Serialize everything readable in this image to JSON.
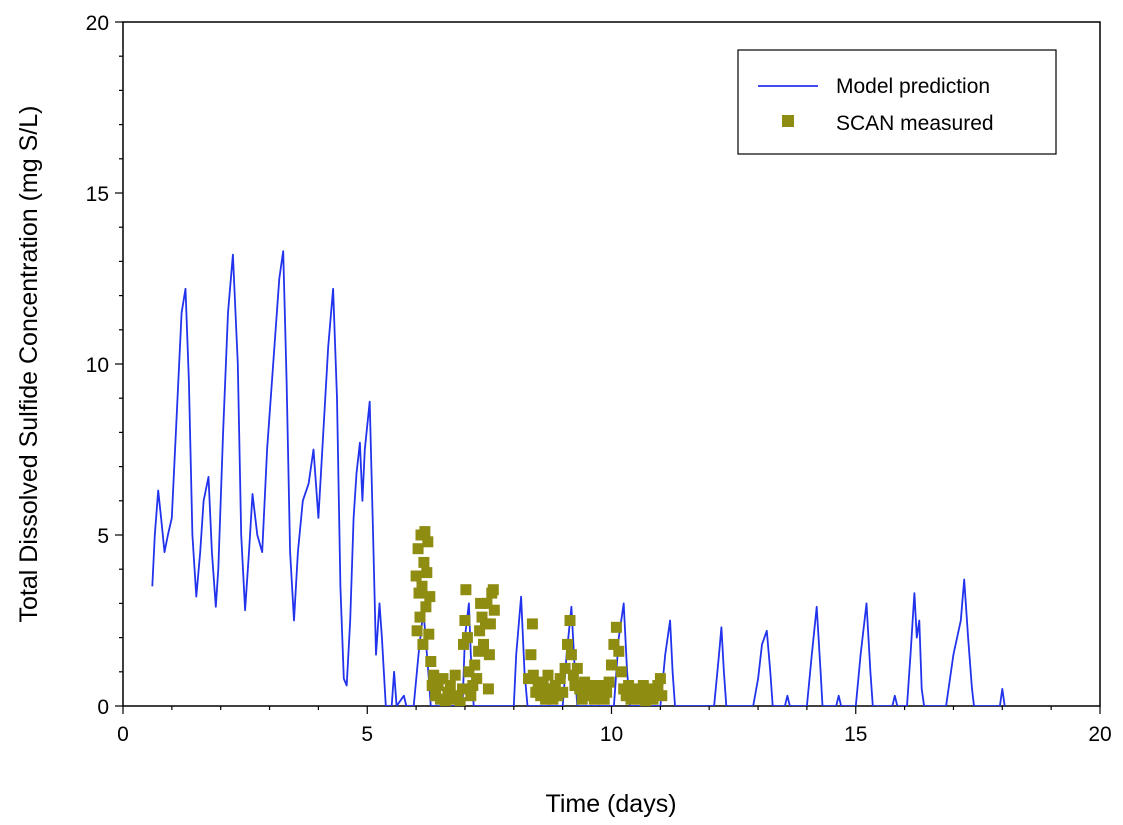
{
  "chart_data": {
    "type": "line",
    "title": "",
    "xlabel": "Time (days)",
    "ylabel": "Total Dissolved Sulfide Concentration (mg S/L)",
    "xlim": [
      0,
      20
    ],
    "ylim": [
      0,
      20
    ],
    "xticks": [
      0,
      5,
      10,
      15,
      20
    ],
    "yticks": [
      0,
      5,
      10,
      15,
      20
    ],
    "grid": false,
    "legend_position": "top-right",
    "colors": {
      "model": "#2233ee",
      "measured": "#8f8c12"
    },
    "series": [
      {
        "name": "Model prediction",
        "kind": "line",
        "points": [
          [
            0.6,
            3.5
          ],
          [
            0.65,
            5.0
          ],
          [
            0.72,
            6.3
          ],
          [
            0.78,
            5.5
          ],
          [
            0.85,
            4.5
          ],
          [
            0.92,
            5.0
          ],
          [
            1.0,
            5.5
          ],
          [
            1.1,
            8.5
          ],
          [
            1.2,
            11.5
          ],
          [
            1.28,
            12.2
          ],
          [
            1.35,
            9.5
          ],
          [
            1.42,
            5.0
          ],
          [
            1.5,
            3.2
          ],
          [
            1.58,
            4.5
          ],
          [
            1.65,
            6.0
          ],
          [
            1.75,
            6.7
          ],
          [
            1.82,
            4.5
          ],
          [
            1.9,
            2.9
          ],
          [
            1.95,
            4.0
          ],
          [
            2.05,
            8.0
          ],
          [
            2.15,
            11.5
          ],
          [
            2.25,
            13.2
          ],
          [
            2.35,
            10.0
          ],
          [
            2.42,
            5.0
          ],
          [
            2.5,
            2.8
          ],
          [
            2.58,
            4.5
          ],
          [
            2.65,
            6.2
          ],
          [
            2.75,
            5.0
          ],
          [
            2.85,
            4.5
          ],
          [
            2.95,
            7.5
          ],
          [
            3.1,
            10.5
          ],
          [
            3.2,
            12.5
          ],
          [
            3.28,
            13.3
          ],
          [
            3.35,
            9.5
          ],
          [
            3.42,
            4.5
          ],
          [
            3.5,
            2.5
          ],
          [
            3.58,
            4.5
          ],
          [
            3.68,
            6.0
          ],
          [
            3.8,
            6.5
          ],
          [
            3.9,
            7.5
          ],
          [
            4.0,
            5.5
          ],
          [
            4.1,
            8.0
          ],
          [
            4.2,
            10.5
          ],
          [
            4.3,
            12.2
          ],
          [
            4.38,
            9.0
          ],
          [
            4.45,
            3.5
          ],
          [
            4.52,
            0.8
          ],
          [
            4.58,
            0.6
          ],
          [
            4.65,
            2.5
          ],
          [
            4.72,
            5.5
          ],
          [
            4.78,
            6.8
          ],
          [
            4.85,
            7.7
          ],
          [
            4.9,
            6.0
          ],
          [
            4.95,
            7.5
          ],
          [
            5.05,
            8.9
          ],
          [
            5.12,
            5.0
          ],
          [
            5.18,
            1.5
          ],
          [
            5.25,
            3.0
          ],
          [
            5.3,
            2.0
          ],
          [
            5.38,
            0.0
          ],
          [
            5.5,
            0.0
          ],
          [
            5.55,
            1.0
          ],
          [
            5.6,
            0.0
          ],
          [
            5.75,
            0.3
          ],
          [
            5.8,
            0.0
          ],
          [
            5.95,
            0.0
          ],
          [
            6.05,
            1.5
          ],
          [
            6.15,
            2.8
          ],
          [
            6.25,
            1.0
          ],
          [
            6.3,
            0.0
          ],
          [
            6.95,
            0.0
          ],
          [
            7.0,
            2.0
          ],
          [
            7.08,
            3.0
          ],
          [
            7.12,
            1.5
          ],
          [
            7.18,
            0.0
          ],
          [
            8.0,
            0.0
          ],
          [
            8.05,
            1.5
          ],
          [
            8.15,
            3.2
          ],
          [
            8.22,
            1.0
          ],
          [
            8.28,
            0.0
          ],
          [
            9.0,
            0.0
          ],
          [
            9.08,
            1.5
          ],
          [
            9.18,
            2.9
          ],
          [
            9.25,
            1.0
          ],
          [
            9.3,
            0.0
          ],
          [
            10.05,
            0.0
          ],
          [
            10.15,
            2.0
          ],
          [
            10.25,
            3.0
          ],
          [
            10.32,
            1.0
          ],
          [
            10.38,
            0.0
          ],
          [
            11.0,
            0.0
          ],
          [
            11.1,
            1.5
          ],
          [
            11.2,
            2.5
          ],
          [
            11.25,
            1.0
          ],
          [
            11.3,
            0.0
          ],
          [
            12.1,
            0.0
          ],
          [
            12.2,
            1.5
          ],
          [
            12.25,
            2.3
          ],
          [
            12.3,
            1.0
          ],
          [
            12.35,
            0.0
          ],
          [
            12.9,
            0.0
          ],
          [
            13.0,
            0.8
          ],
          [
            13.08,
            1.8
          ],
          [
            13.18,
            2.2
          ],
          [
            13.25,
            1.0
          ],
          [
            13.3,
            0.0
          ],
          [
            13.55,
            0.0
          ],
          [
            13.6,
            0.3
          ],
          [
            13.65,
            0.0
          ],
          [
            14.0,
            0.0
          ],
          [
            14.1,
            1.5
          ],
          [
            14.2,
            2.9
          ],
          [
            14.28,
            1.0
          ],
          [
            14.32,
            0.0
          ],
          [
            14.6,
            0.0
          ],
          [
            14.65,
            0.3
          ],
          [
            14.7,
            0.0
          ],
          [
            15.0,
            0.0
          ],
          [
            15.1,
            1.5
          ],
          [
            15.22,
            3.0
          ],
          [
            15.3,
            1.0
          ],
          [
            15.35,
            0.0
          ],
          [
            15.75,
            0.0
          ],
          [
            15.8,
            0.3
          ],
          [
            15.85,
            0.0
          ],
          [
            16.05,
            0.0
          ],
          [
            16.12,
            1.5
          ],
          [
            16.2,
            3.3
          ],
          [
            16.25,
            2.0
          ],
          [
            16.3,
            2.5
          ],
          [
            16.35,
            0.5
          ],
          [
            16.4,
            0.0
          ],
          [
            16.85,
            0.0
          ],
          [
            17.0,
            1.5
          ],
          [
            17.15,
            2.5
          ],
          [
            17.22,
            3.7
          ],
          [
            17.3,
            2.0
          ],
          [
            17.38,
            0.5
          ],
          [
            17.42,
            0.0
          ],
          [
            17.95,
            0.0
          ],
          [
            18.0,
            0.5
          ],
          [
            18.05,
            0.0
          ]
        ]
      },
      {
        "name": "SCAN measured",
        "kind": "scatter",
        "points": [
          [
            6.0,
            3.8
          ],
          [
            6.02,
            2.2
          ],
          [
            6.04,
            4.6
          ],
          [
            6.06,
            3.3
          ],
          [
            6.08,
            2.6
          ],
          [
            6.1,
            5.0
          ],
          [
            6.12,
            3.5
          ],
          [
            6.14,
            1.8
          ],
          [
            6.16,
            4.2
          ],
          [
            6.18,
            5.1
          ],
          [
            6.2,
            2.9
          ],
          [
            6.22,
            3.9
          ],
          [
            6.24,
            4.8
          ],
          [
            6.26,
            2.1
          ],
          [
            6.28,
            3.2
          ],
          [
            6.3,
            1.3
          ],
          [
            6.33,
            0.6
          ],
          [
            6.36,
            0.9
          ],
          [
            6.4,
            0.3
          ],
          [
            6.45,
            0.6
          ],
          [
            6.5,
            0.2
          ],
          [
            6.55,
            0.8
          ],
          [
            6.6,
            0.1
          ],
          [
            6.65,
            0.4
          ],
          [
            6.7,
            0.6
          ],
          [
            6.75,
            0.2
          ],
          [
            6.8,
            0.9
          ],
          [
            6.85,
            0.3
          ],
          [
            6.9,
            0.1
          ],
          [
            6.95,
            0.5
          ],
          [
            6.97,
            1.8
          ],
          [
            7.0,
            2.5
          ],
          [
            7.02,
            3.4
          ],
          [
            7.05,
            2.0
          ],
          [
            7.08,
            1.0
          ],
          [
            7.12,
            0.3
          ],
          [
            7.16,
            0.6
          ],
          [
            7.2,
            1.2
          ],
          [
            7.24,
            0.8
          ],
          [
            7.28,
            1.6
          ],
          [
            7.3,
            2.2
          ],
          [
            7.32,
            3.0
          ],
          [
            7.35,
            2.6
          ],
          [
            7.38,
            1.8
          ],
          [
            7.42,
            2.4
          ],
          [
            7.45,
            3.0
          ],
          [
            7.48,
            0.5
          ],
          [
            7.5,
            1.5
          ],
          [
            7.52,
            2.4
          ],
          [
            7.55,
            3.3
          ],
          [
            7.58,
            3.4
          ],
          [
            7.6,
            2.8
          ],
          [
            8.3,
            0.8
          ],
          [
            8.35,
            1.5
          ],
          [
            8.38,
            2.4
          ],
          [
            8.4,
            0.9
          ],
          [
            8.45,
            0.4
          ],
          [
            8.5,
            0.7
          ],
          [
            8.55,
            0.3
          ],
          [
            8.6,
            0.6
          ],
          [
            8.65,
            0.2
          ],
          [
            8.7,
            0.9
          ],
          [
            8.75,
            0.5
          ],
          [
            8.8,
            0.2
          ],
          [
            8.85,
            0.6
          ],
          [
            8.9,
            0.3
          ],
          [
            8.95,
            0.8
          ],
          [
            9.0,
            0.4
          ],
          [
            9.05,
            1.1
          ],
          [
            9.1,
            1.8
          ],
          [
            9.15,
            2.5
          ],
          [
            9.18,
            1.5
          ],
          [
            9.22,
            0.9
          ],
          [
            9.25,
            0.6
          ],
          [
            9.3,
            1.1
          ],
          [
            9.35,
            0.5
          ],
          [
            9.4,
            0.2
          ],
          [
            9.45,
            0.7
          ],
          [
            9.5,
            0.4
          ],
          [
            9.55,
            0.3
          ],
          [
            9.6,
            0.6
          ],
          [
            9.65,
            0.2
          ],
          [
            9.7,
            0.5
          ],
          [
            9.75,
            0.3
          ],
          [
            9.8,
            0.6
          ],
          [
            9.85,
            0.2
          ],
          [
            9.9,
            0.4
          ],
          [
            9.95,
            0.7
          ],
          [
            10.0,
            1.2
          ],
          [
            10.05,
            1.8
          ],
          [
            10.1,
            2.3
          ],
          [
            10.15,
            1.6
          ],
          [
            10.2,
            1.0
          ],
          [
            10.25,
            0.5
          ],
          [
            10.3,
            0.3
          ],
          [
            10.35,
            0.6
          ],
          [
            10.4,
            0.2
          ],
          [
            10.45,
            0.5
          ],
          [
            10.5,
            0.3
          ],
          [
            10.55,
            0.4
          ],
          [
            10.6,
            0.2
          ],
          [
            10.65,
            0.6
          ],
          [
            10.7,
            0.1
          ],
          [
            10.75,
            0.3
          ],
          [
            10.8,
            0.5
          ],
          [
            10.85,
            0.2
          ],
          [
            10.9,
            0.4
          ],
          [
            10.95,
            0.6
          ],
          [
            11.0,
            0.8
          ],
          [
            11.03,
            0.3
          ]
        ]
      }
    ]
  }
}
